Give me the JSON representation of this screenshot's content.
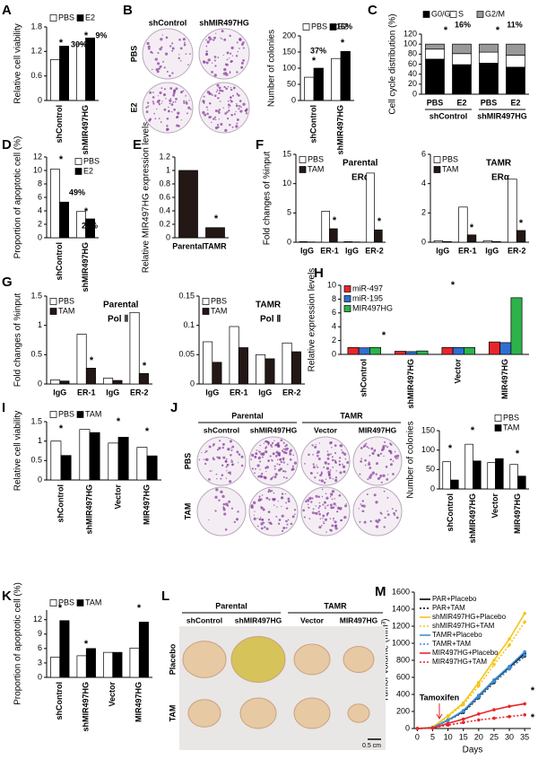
{
  "chart_data": [
    {
      "panel": "A",
      "type": "bar",
      "categories": [
        "shControl",
        "shMIR497HG"
      ],
      "series": [
        {
          "name": "PBS",
          "color": "#ffffff",
          "values": [
            1.0,
            1.38
          ]
        },
        {
          "name": "E2",
          "color": "#000000",
          "values": [
            1.33,
            1.53
          ]
        }
      ],
      "ylim": [
        0,
        1.8
      ],
      "yticks": [
        0,
        0.6,
        1.2,
        1.8
      ],
      "ylabel": "Relative cell viability",
      "annotations": [
        "*",
        "30%",
        "*",
        "9%"
      ]
    },
    {
      "panel": "B",
      "type": "bar",
      "categories": [
        "shControl",
        "shMIR497HG"
      ],
      "series": [
        {
          "name": "PBS",
          "color": "#ffffff",
          "values": [
            72,
            130
          ]
        },
        {
          "name": "E2",
          "color": "#000000",
          "values": [
            100,
            152
          ]
        }
      ],
      "ylim": [
        0,
        200
      ],
      "yticks": [
        0,
        50,
        100,
        150,
        200
      ],
      "ylabel": "Number of colonies",
      "annotations": [
        "*",
        "37%",
        "*",
        "16%"
      ]
    },
    {
      "panel": "C",
      "type": "bar",
      "stacked": true,
      "categories": [
        "PBS",
        "E2",
        "PBS",
        "E2"
      ],
      "groups": [
        "shControl",
        "shMIR497HG"
      ],
      "series": [
        {
          "name": "G0/G1",
          "color": "#000000",
          "values": [
            70,
            59,
            62,
            54
          ]
        },
        {
          "name": "S",
          "color": "#ffffff",
          "values": [
            20,
            22,
            22,
            24
          ]
        },
        {
          "name": "G2/M",
          "color": "#999999",
          "values": [
            10,
            19,
            16,
            22
          ]
        }
      ],
      "ylim": [
        0,
        120
      ],
      "yticks": [
        0,
        20,
        40,
        60,
        80,
        100,
        120
      ],
      "ylabel": "Cell cycle distribution (%)",
      "annotations": [
        "*",
        "16%",
        "*",
        "11%"
      ]
    },
    {
      "panel": "D",
      "type": "bar",
      "categories": [
        "shControl",
        "shMIR497HG"
      ],
      "series": [
        {
          "name": "PBS",
          "color": "#ffffff",
          "values": [
            10.2,
            3.9
          ]
        },
        {
          "name": "E2",
          "color": "#000000",
          "values": [
            5.3,
            2.8
          ]
        }
      ],
      "ylim": [
        0,
        12
      ],
      "yticks": [
        0,
        2,
        4,
        6,
        8,
        10,
        12
      ],
      "ylabel": "Proportion of apoptotic cell (%)",
      "annotations": [
        "*",
        "49%",
        "*",
        "29%"
      ]
    },
    {
      "panel": "E",
      "type": "bar",
      "categories": [
        "Parental",
        "TAMR"
      ],
      "values": [
        1.0,
        0.15
      ],
      "color": "#231815",
      "ylim": [
        0,
        1.2
      ],
      "yticks": [
        0,
        0.2,
        0.4,
        0.6,
        0.8,
        1,
        1.2
      ],
      "ylabel": "Relative MIR497HG expression levels",
      "annotations": [
        "*"
      ]
    },
    {
      "panel": "F",
      "type": "bar",
      "title": "Parental",
      "subtitle": "ERα",
      "categories": [
        "IgG",
        "ER-1",
        "IgG",
        "ER-2"
      ],
      "series": [
        {
          "name": "PBS",
          "color": "#ffffff",
          "values": [
            0.1,
            5.3,
            0.1,
            11.8
          ]
        },
        {
          "name": "TAM",
          "color": "#231815",
          "values": [
            0.05,
            2.3,
            0.05,
            2.1
          ]
        }
      ],
      "ylim": [
        0,
        15
      ],
      "yticks": [
        0,
        5,
        10,
        15
      ],
      "ylabel": "Fold changes of %input",
      "annotations": [
        "*",
        "*"
      ]
    },
    {
      "type": "bar",
      "title": "TAMR",
      "subtitle": "ERα",
      "categories": [
        "IgG",
        "ER-1",
        "IgG",
        "ER-2"
      ],
      "series": [
        {
          "name": "PBS",
          "color": "#ffffff",
          "values": [
            0.1,
            2.4,
            0.1,
            4.3
          ]
        },
        {
          "name": "TAM",
          "color": "#231815",
          "values": [
            0.05,
            0.5,
            0.05,
            0.8
          ]
        }
      ],
      "ylim": [
        0,
        6
      ],
      "yticks": [
        0,
        2,
        4,
        6
      ],
      "annotations": [
        "*",
        "*"
      ]
    },
    {
      "panel": "G",
      "type": "bar",
      "title": "Parental",
      "subtitle": "Pol Ⅱ",
      "categories": [
        "IgG",
        "ER-1",
        "IgG",
        "ER-2"
      ],
      "series": [
        {
          "name": "PBS",
          "color": "#ffffff",
          "values": [
            0.07,
            0.85,
            0.1,
            1.22
          ]
        },
        {
          "name": "TAM",
          "color": "#231815",
          "values": [
            0.05,
            0.27,
            0.06,
            0.18
          ]
        }
      ],
      "ylim": [
        0,
        1.5
      ],
      "yticks": [
        0,
        0.5,
        1,
        1.5
      ],
      "ylabel": "Fold changes of %input",
      "annotations": [
        "*",
        "*"
      ]
    },
    {
      "type": "bar",
      "title": "TAMR",
      "subtitle": "Pol Ⅱ",
      "categories": [
        "IgG",
        "ER-1",
        "IgG",
        "ER-2"
      ],
      "series": [
        {
          "name": "PBS",
          "color": "#ffffff",
          "values": [
            0.072,
            0.098,
            0.05,
            0.07
          ]
        },
        {
          "name": "TAM",
          "color": "#231815",
          "values": [
            0.037,
            0.062,
            0.043,
            0.055
          ]
        }
      ],
      "ylim": [
        0,
        0.15
      ],
      "yticks": [
        0,
        0.05,
        0.1,
        0.15
      ]
    },
    {
      "panel": "H",
      "type": "bar",
      "categories": [
        "shControl",
        "shMIR497HG",
        "Vector",
        "MIR497HG"
      ],
      "series": [
        {
          "name": "miR-497",
          "color": "#e8262a",
          "values": [
            1.0,
            0.45,
            1.0,
            1.8
          ]
        },
        {
          "name": "miR-195",
          "color": "#2f6fd1",
          "values": [
            0.95,
            0.4,
            1.0,
            1.7
          ]
        },
        {
          "name": "MIR497HG",
          "color": "#2db34a",
          "values": [
            1.0,
            0.5,
            1.0,
            8.2
          ]
        }
      ],
      "ylim": [
        0,
        10
      ],
      "yticks": [
        0,
        2,
        4,
        6,
        8,
        10
      ],
      "ylabel": "Relative expression levels",
      "annotations": [
        "*",
        "*"
      ]
    },
    {
      "panel": "I",
      "type": "bar",
      "categories": [
        "shControl",
        "shMIR497HG",
        "Vector",
        "MIR497HG"
      ],
      "series": [
        {
          "name": "PBS",
          "color": "#ffffff",
          "values": [
            1.0,
            1.3,
            0.95,
            0.84
          ]
        },
        {
          "name": "TAM",
          "color": "#000000",
          "values": [
            0.63,
            1.22,
            1.1,
            0.62
          ]
        }
      ],
      "ylim": [
        0,
        1.5
      ],
      "yticks": [
        0,
        0.5,
        1,
        1.5
      ],
      "ylabel": "Relative cell viability",
      "annotations": [
        "*",
        "*",
        "*"
      ]
    },
    {
      "panel": "J",
      "type": "bar",
      "categories": [
        "shControl",
        "shMIR497HG",
        "Vector",
        "MIR497HG"
      ],
      "series": [
        {
          "name": "PBS",
          "color": "#ffffff",
          "values": [
            70,
            115,
            68,
            63
          ]
        },
        {
          "name": "TAM",
          "color": "#000000",
          "values": [
            23,
            72,
            78,
            33
          ]
        }
      ],
      "ylim": [
        0,
        150
      ],
      "yticks": [
        0,
        50,
        100,
        150
      ],
      "ylabel": "Number of colonies",
      "annotations": [
        "*",
        "*",
        "*"
      ]
    },
    {
      "panel": "K",
      "type": "bar",
      "categories": [
        "shControl",
        "shMIR497HG",
        "Vector",
        "MIR497HG"
      ],
      "series": [
        {
          "name": "PBS",
          "color": "#ffffff",
          "values": [
            4.2,
            4.5,
            5.2,
            6.1
          ]
        },
        {
          "name": "TAM",
          "color": "#000000",
          "values": [
            11.8,
            6.0,
            5.2,
            11.5
          ]
        }
      ],
      "ylim": [
        0,
        14
      ],
      "yticks": [
        0,
        3,
        6,
        9,
        12
      ],
      "ylabel": "Proportion of apoptotic cell (%)",
      "annotations": [
        "*",
        "*",
        "*"
      ]
    },
    {
      "panel": "M",
      "type": "line",
      "x": [
        0,
        5,
        10,
        15,
        20,
        25,
        30,
        35
      ],
      "xlim": [
        -1,
        37
      ],
      "xticks": [
        0,
        5,
        10,
        15,
        20,
        25,
        30,
        35
      ],
      "series": [
        {
          "name": "PAR+Placebo",
          "color": "#000000",
          "line_style": "solid",
          "values": [
            0,
            10,
            100,
            200,
            380,
            560,
            720,
            880
          ]
        },
        {
          "name": "PAR+TAM",
          "color": "#000000",
          "line_style": "dotted",
          "values": [
            0,
            10,
            95,
            190,
            360,
            540,
            700,
            850
          ]
        },
        {
          "name": "shMIR497HG+Placebo",
          "color": "#f5c518",
          "line_style": "solid",
          "values": [
            0,
            15,
            150,
            300,
            540,
            800,
            1050,
            1350
          ]
        },
        {
          "name": "shMIR497HG+TAM",
          "color": "#f5c518",
          "line_style": "dotted",
          "values": [
            0,
            15,
            140,
            280,
            500,
            750,
            980,
            1250
          ]
        },
        {
          "name": "TAMR+Placebo",
          "color": "#3b8fd6",
          "line_style": "solid",
          "values": [
            0,
            10,
            100,
            210,
            390,
            570,
            730,
            900
          ]
        },
        {
          "name": "TAMR+TAM",
          "color": "#3b8fd6",
          "line_style": "dotted",
          "values": [
            0,
            10,
            95,
            200,
            370,
            550,
            700,
            860
          ]
        },
        {
          "name": "MIR497HG+Placebo",
          "color": "#e8262a",
          "line_style": "solid",
          "values": [
            0,
            5,
            60,
            110,
            170,
            220,
            260,
            290
          ]
        },
        {
          "name": "MIR497HG+TAM",
          "color": "#e8262a",
          "line_style": "dotted",
          "values": [
            0,
            5,
            40,
            70,
            100,
            120,
            140,
            160
          ]
        }
      ],
      "ylim": [
        0,
        1600
      ],
      "yticks": [
        0,
        200,
        400,
        600,
        800,
        1000,
        1200,
        1400,
        1600
      ],
      "xlabel": "Days",
      "ylabel": "Tumor volume (mm³)",
      "annotations": [
        "Tamoxifen",
        "*",
        "*"
      ]
    }
  ],
  "images": {
    "B": {
      "columns": [
        "shControl",
        "shMIR497HG"
      ],
      "rows": [
        "PBS",
        "E2"
      ]
    },
    "J": {
      "groups": [
        "Parental",
        "TAMR"
      ],
      "columns": [
        "shControl",
        "shMIR497HG",
        "Vector",
        "MIR497HG"
      ],
      "rows": [
        "PBS",
        "TAM"
      ]
    },
    "L": {
      "panel": "L",
      "groups": [
        "Parental",
        "TAMR"
      ],
      "columns": [
        "shControl",
        "shMIR497HG",
        "Vector",
        "MIR497HG"
      ],
      "rows": [
        "Placebo",
        "TAM"
      ],
      "scale": "0.5 cm"
    }
  }
}
